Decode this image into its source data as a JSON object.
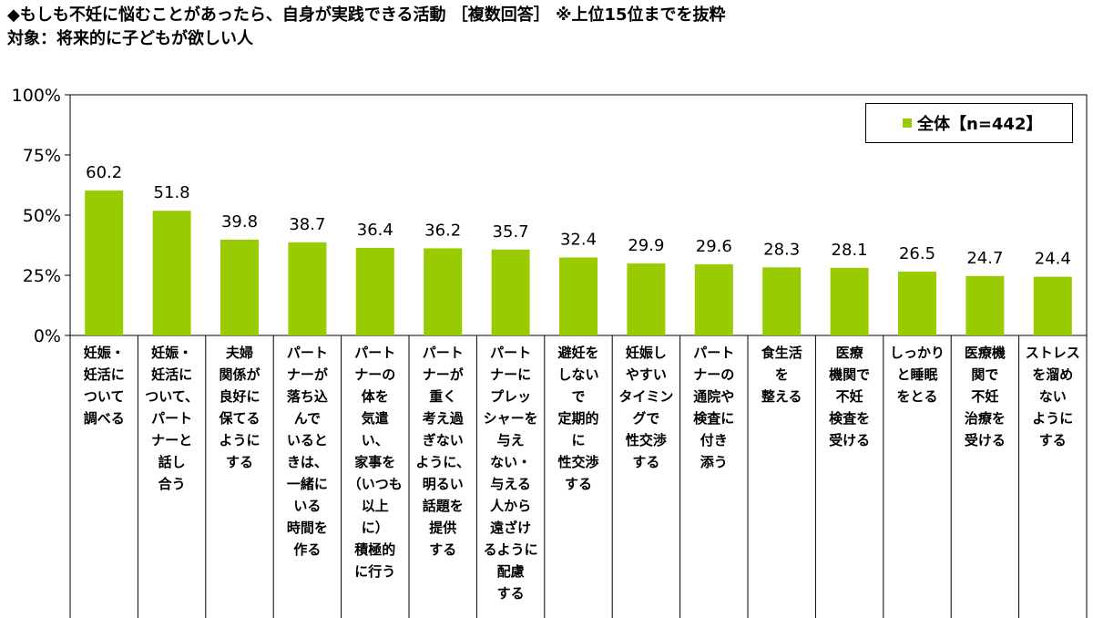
{
  "header": {
    "line1": "◆もしも不妊に悩むことがあったら、自身が実践できる活動 ［複数回答］ ※上位15位までを抜粋",
    "line2": "対象：将来的に子どもが欲しい人"
  },
  "colors": {
    "bar": "#99cc00",
    "grid": "#000000"
  },
  "chart_data": {
    "type": "bar",
    "ylim": [
      0,
      100
    ],
    "y_ticks": [
      "0%",
      "25%",
      "50%",
      "75%",
      "100%"
    ],
    "categories": [
      "妊娠・\n妊活に\nついて\n調べる",
      "妊娠・\n妊活に\nついて、\nパート\nナーと\n話し\n合う",
      "夫婦\n関係が\n良好に\n保てる\nように\nする",
      "パート\nナーが\n落ち込\nんで\nいると\nきは、\n一緒に\nいる\n時間を\n作る",
      "パート\nナーの\n体を\n気遣\nい、\n家事を\n（いつも\n以上\nに）\n積極的\nに行う",
      "パート\nナーが\n重く\n考え過\nぎない\nように、\n明るい\n話題を\n提供\nする",
      "パート\nナーに\nプレッ\nシャーを\n与え\nない・\n与える\n人から\n遠ざけ\nるように\n配慮\nする",
      "避妊を\nしない\nで\n定期的\nに\n性交渉\nする",
      "妊娠し\nやすい\nタイミン\nグで\n性交渉\nする",
      "パート\nナーの\n通院や\n検査に\n付き\n添う",
      "食生活\nを\n整える",
      "医療\n機関で\n不妊\n検査を\n受ける",
      "しっかり\nと睡眠\nをとる",
      "医療機\n関で\n不妊\n治療を\n受ける",
      "ストレス\nを溜め\nない\nように\nする"
    ],
    "series": [
      {
        "name": "全体【n=442】",
        "values": [
          60.2,
          51.8,
          39.8,
          38.7,
          36.4,
          36.2,
          35.7,
          32.4,
          29.9,
          29.6,
          28.3,
          28.1,
          26.5,
          24.7,
          24.4
        ]
      }
    ],
    "legend_position": "top-right"
  }
}
